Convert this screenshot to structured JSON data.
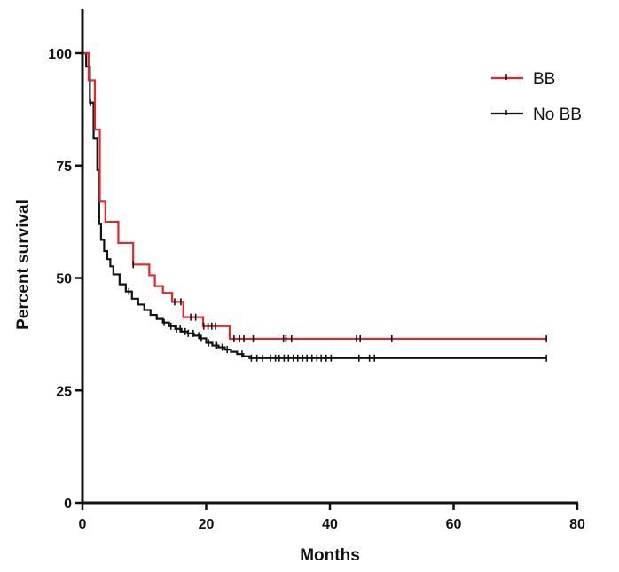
{
  "chart_data": {
    "type": "line",
    "xlabel": "Months",
    "ylabel": "Percent survival",
    "xlim": [
      0,
      80
    ],
    "ylim": [
      0,
      110
    ],
    "x_ticks": [
      0,
      20,
      40,
      60,
      80
    ],
    "y_ticks": [
      0,
      25,
      50,
      75,
      100
    ],
    "grid": false,
    "legend_position": "top-right",
    "series": [
      {
        "name": "BB",
        "color": "#e8242a",
        "step": true,
        "x": [
          0,
          1,
          2,
          2.8,
          3.7,
          5.8,
          8.2,
          10.8,
          11.7,
          13,
          14.5,
          16.3,
          19.5,
          23.8,
          75
        ],
        "y": [
          100,
          94,
          83,
          67,
          62.5,
          57.8,
          53,
          50.6,
          48.2,
          46.7,
          44.7,
          41.3,
          39.3,
          36.5,
          36.5
        ],
        "censored_x": [
          8.2,
          14.9,
          15.9,
          17.5,
          18.3,
          19.6,
          20.3,
          20.9,
          21.5,
          24.5,
          25.4,
          26.1,
          27.6,
          32.5,
          32.9,
          33.8,
          44.3,
          44.9,
          50,
          75
        ]
      },
      {
        "name": "No BB",
        "color": "#111111",
        "step": true,
        "x": [
          0,
          0.6,
          1.2,
          1.8,
          2.4,
          2.7,
          3,
          3.5,
          4,
          4.5,
          5,
          6,
          7,
          8,
          9,
          10,
          11,
          12,
          13,
          14,
          15,
          16,
          17,
          18,
          19,
          20,
          21,
          22,
          23,
          24,
          25,
          26,
          27,
          75
        ],
        "y": [
          100,
          97,
          89,
          81,
          74,
          62,
          58.5,
          56,
          54.2,
          52.6,
          50.8,
          48.6,
          47,
          45.4,
          44.1,
          42.9,
          41.8,
          40.9,
          40.1,
          39.3,
          38.7,
          38.1,
          37.7,
          37.2,
          36.6,
          35.6,
          35,
          34.6,
          34.1,
          33.6,
          33.1,
          32.6,
          32.2,
          32.2
        ],
        "censored_x": [
          1.3,
          7.5,
          13.2,
          14.3,
          15.2,
          15.8,
          16.6,
          17.1,
          17.9,
          18.8,
          19.2,
          20.4,
          21.7,
          22.6,
          23.4,
          25.8,
          27.3,
          28.2,
          29.1,
          30.4,
          31.2,
          31.8,
          32.6,
          33.3,
          34.1,
          34.8,
          35.6,
          36.3,
          37.1,
          37.9,
          38.6,
          39.4,
          40.2,
          44.7,
          46.4,
          47.2,
          75
        ]
      }
    ]
  }
}
